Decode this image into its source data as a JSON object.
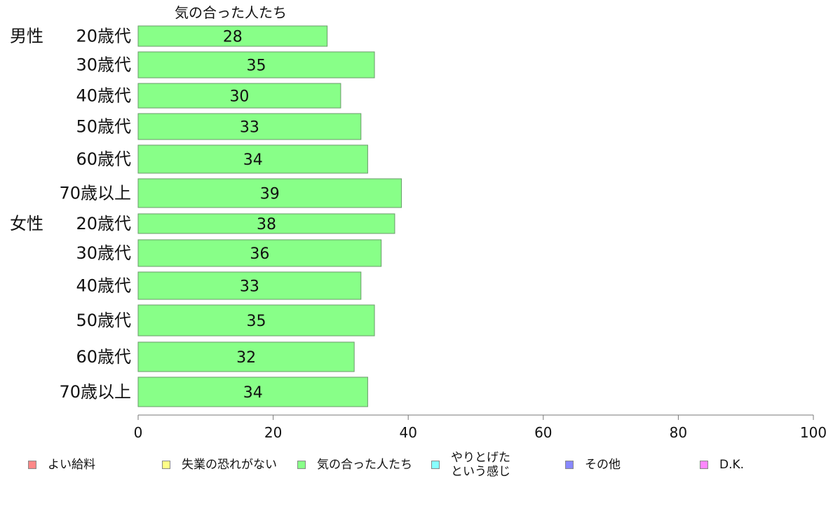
{
  "chart_data": {
    "type": "bar",
    "orientation": "horizontal",
    "title": "気の合った人たち",
    "categories": [
      {
        "group": "男性",
        "label": "20歳代"
      },
      {
        "group": "",
        "label": "30歳代"
      },
      {
        "group": "",
        "label": "40歳代"
      },
      {
        "group": "",
        "label": "50歳代"
      },
      {
        "group": "",
        "label": "60歳代"
      },
      {
        "group": "",
        "label": "70歳以上"
      },
      {
        "group": "女性",
        "label": "20歳代"
      },
      {
        "group": "",
        "label": "30歳代"
      },
      {
        "group": "",
        "label": "40歳代"
      },
      {
        "group": "",
        "label": "50歳代"
      },
      {
        "group": "",
        "label": "60歳代"
      },
      {
        "group": "",
        "label": "70歳以上"
      }
    ],
    "series": [
      {
        "name": "気の合った人たち",
        "color": "#88ff88",
        "values": [
          28,
          35,
          30,
          33,
          34,
          39,
          38,
          36,
          33,
          35,
          32,
          34
        ]
      }
    ],
    "xlim": [
      0,
      100
    ],
    "xticks": [
      0,
      20,
      40,
      60,
      80,
      100
    ],
    "grid": false,
    "legend_position": "bottom"
  },
  "legend": [
    {
      "label": "よい給料",
      "color": "#ff8888"
    },
    {
      "label": "失業の恐れがない",
      "color": "#ffff88"
    },
    {
      "label": "気の合った人たち",
      "color": "#88ff88"
    },
    {
      "label": "やりとげた\nという感じ",
      "color": "#88ffff"
    },
    {
      "label": "その他",
      "color": "#8888ff"
    },
    {
      "label": "D.K.",
      "color": "#ff88ff"
    }
  ]
}
